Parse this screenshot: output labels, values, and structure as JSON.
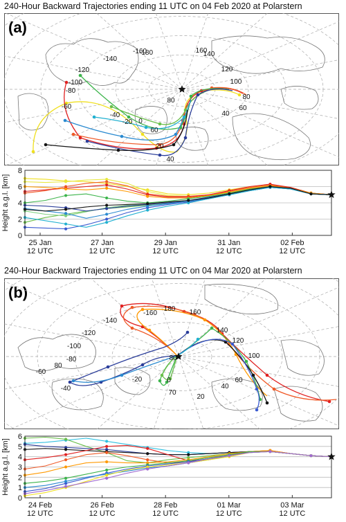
{
  "chart_data": [
    {
      "panel": "(a)",
      "type": "map",
      "title": "240-Hour Backward Trajectories ending 11 UTC on 04 Feb 2020 at Polarstern",
      "longitude_labels": [
        "-180",
        "-160",
        "-140",
        "-120",
        "-100",
        "-80",
        "-60",
        "-40",
        "-20",
        "0",
        "20",
        "40",
        "60",
        "80",
        "100",
        "120",
        "140",
        "160"
      ],
      "latitude_labels": [
        "80",
        "60",
        "40"
      ]
    },
    {
      "panel": "(a)",
      "type": "line",
      "xlabel": "",
      "ylabel": "Height a.g.l. [km]",
      "ylim": [
        0,
        8
      ],
      "yticks": [
        "0",
        "2",
        "4",
        "6",
        "8"
      ],
      "x_date_ticks": [
        {
          "date": "25 Jan",
          "time": "12 UTC"
        },
        {
          "date": "27 Jan",
          "time": "12 UTC"
        },
        {
          "date": "29 Jan",
          "time": "12 UTC"
        },
        {
          "date": "31 Jan",
          "time": "12 UTC"
        },
        {
          "date": "02 Feb",
          "time": "12 UTC"
        }
      ],
      "end_height_km": 5,
      "series": [
        {
          "color": "#f0e020",
          "values": [
            7.0,
            6.9,
            6.7,
            6.6,
            6.4,
            6.0,
            5.6,
            5.1,
            5.0,
            5.2,
            5.6,
            6.0,
            6.2,
            5.9,
            5.2,
            5.0
          ]
        },
        {
          "color": "#e8e840",
          "values": [
            6.6,
            6.5,
            6.6,
            6.8,
            6.9,
            6.4,
            5.4,
            4.9,
            4.8,
            4.9,
            5.3,
            5.8,
            6.1,
            5.8,
            5.1,
            5.0
          ]
        },
        {
          "color": "#f05a28",
          "values": [
            5.2,
            5.5,
            6.0,
            6.4,
            6.6,
            6.1,
            5.1,
            4.8,
            4.8,
            5.0,
            5.4,
            5.9,
            6.2,
            5.8,
            5.2,
            5.0
          ]
        },
        {
          "color": "#e02020",
          "values": [
            5.4,
            5.6,
            5.8,
            6.0,
            6.2,
            5.7,
            5.0,
            4.7,
            4.7,
            5.0,
            5.5,
            6.0,
            6.3,
            5.9,
            5.2,
            5.0
          ]
        },
        {
          "color": "#ff9900",
          "values": [
            6.0,
            5.9,
            5.7,
            5.6,
            5.8,
            5.4,
            4.8,
            4.6,
            4.6,
            4.9,
            5.3,
            5.8,
            6.1,
            5.8,
            5.2,
            5.0
          ]
        },
        {
          "color": "#3cb44b",
          "values": [
            4.0,
            4.3,
            4.9,
            5.1,
            4.6,
            4.2,
            4.0,
            4.2,
            4.5,
            4.8,
            5.2,
            5.7,
            6.0,
            5.8,
            5.1,
            5.0
          ]
        },
        {
          "color": "#6abf4b",
          "values": [
            1.6,
            2.2,
            2.6,
            3.0,
            3.3,
            3.5,
            3.7,
            4.0,
            4.3,
            4.6,
            5.0,
            5.5,
            5.9,
            5.7,
            5.1,
            5.0
          ]
        },
        {
          "color": "#80d080",
          "values": [
            3.0,
            2.6,
            2.4,
            2.9,
            3.4,
            3.7,
            3.8,
            3.9,
            4.2,
            4.6,
            5.1,
            5.6,
            6.0,
            5.7,
            5.1,
            5.0
          ]
        },
        {
          "color": "#2a3d9a",
          "values": [
            3.7,
            3.6,
            3.4,
            3.0,
            3.3,
            3.6,
            3.8,
            4.0,
            4.3,
            4.7,
            5.1,
            5.6,
            6.0,
            5.8,
            5.1,
            5.0
          ]
        },
        {
          "color": "#3a5ad0",
          "values": [
            1.0,
            0.9,
            0.8,
            1.3,
            2.0,
            2.8,
            3.4,
            3.8,
            4.1,
            4.5,
            5.0,
            5.5,
            5.9,
            5.7,
            5.1,
            5.0
          ]
        },
        {
          "color": "#2a8ad0",
          "values": [
            3.3,
            3.0,
            2.7,
            2.1,
            2.6,
            3.2,
            3.6,
            3.9,
            4.2,
            4.6,
            5.0,
            5.5,
            5.9,
            5.7,
            5.1,
            5.0
          ]
        },
        {
          "color": "#20b0d0",
          "values": [
            2.2,
            1.8,
            1.4,
            1.0,
            1.6,
            2.4,
            3.1,
            3.6,
            4.0,
            4.5,
            5.0,
            5.5,
            5.9,
            5.7,
            5.1,
            5.0
          ]
        },
        {
          "color": "#141414",
          "values": [
            3.2,
            3.0,
            3.2,
            3.5,
            3.7,
            3.8,
            3.9,
            4.1,
            4.3,
            4.6,
            5.1,
            5.6,
            6.0,
            5.8,
            5.1,
            5.0
          ]
        }
      ]
    },
    {
      "panel": "(b)",
      "type": "map",
      "title": "240-Hour Backward Trajectories ending 11 UTC on 04 Mar 2020 at Polarstern",
      "longitude_labels": [
        "180",
        "-160",
        "160",
        "-140",
        "140",
        "-120",
        "120",
        "-100",
        "100",
        "-80",
        "80",
        "-60",
        "60",
        "-40",
        "40",
        "-20",
        "20",
        "0"
      ],
      "latitude_labels": [
        "80",
        "70"
      ]
    },
    {
      "panel": "(b)",
      "type": "line",
      "xlabel": "",
      "ylabel": "Height a.g.l. [km]",
      "ylim": [
        0,
        6
      ],
      "yticks": [
        "0",
        "1",
        "2",
        "3",
        "4",
        "5",
        "6"
      ],
      "x_date_ticks": [
        {
          "date": "24 Feb",
          "time": "12 UTC"
        },
        {
          "date": "26 Feb",
          "time": "12 UTC"
        },
        {
          "date": "28 Feb",
          "time": "12 UTC"
        },
        {
          "date": "01 Mar",
          "time": "12 UTC"
        },
        {
          "date": "03 Mar",
          "time": "12 UTC"
        }
      ],
      "end_height_km": 4,
      "series": [
        {
          "color": "#30c0e0",
          "values": [
            5.3,
            5.4,
            5.6,
            5.8,
            5.5,
            5.2,
            4.9,
            4.6,
            4.4,
            4.3,
            4.4,
            4.5,
            4.5,
            4.3,
            4.1,
            4.0
          ]
        },
        {
          "color": "#6abf4b",
          "values": [
            5.8,
            5.9,
            5.7,
            5.0,
            4.4,
            3.6,
            3.4,
            3.7,
            3.9,
            4.1,
            4.3,
            4.5,
            4.5,
            4.3,
            4.1,
            4.0
          ]
        },
        {
          "color": "#2a3d9a",
          "values": [
            5.2,
            5.0,
            4.9,
            4.8,
            4.7,
            4.5,
            4.3,
            4.2,
            4.2,
            4.3,
            4.4,
            4.5,
            4.5,
            4.3,
            4.1,
            4.0
          ]
        },
        {
          "color": "#141414",
          "values": [
            4.7,
            4.8,
            4.7,
            4.6,
            4.5,
            4.4,
            4.3,
            4.2,
            4.2,
            4.3,
            4.4,
            4.5,
            4.5,
            4.3,
            4.1,
            4.0
          ]
        },
        {
          "color": "#e02020",
          "values": [
            3.7,
            3.9,
            4.2,
            4.6,
            5.0,
            5.1,
            4.8,
            4.2,
            3.6,
            3.7,
            4.1,
            4.5,
            4.6,
            4.3,
            4.1,
            4.0
          ]
        },
        {
          "color": "#f05a28",
          "values": [
            2.8,
            3.1,
            3.7,
            4.2,
            4.4,
            4.1,
            3.7,
            3.4,
            3.5,
            3.8,
            4.2,
            4.5,
            4.6,
            4.3,
            4.1,
            4.0
          ]
        },
        {
          "color": "#ff9900",
          "values": [
            2.2,
            2.5,
            3.0,
            3.4,
            3.5,
            3.4,
            3.4,
            3.5,
            3.7,
            4.0,
            4.3,
            4.5,
            4.6,
            4.3,
            4.1,
            4.0
          ]
        },
        {
          "color": "#3cb44b",
          "values": [
            1.4,
            1.6,
            1.9,
            2.3,
            2.7,
            3.0,
            3.2,
            3.4,
            3.6,
            3.9,
            4.2,
            4.5,
            4.5,
            4.3,
            4.1,
            4.0
          ]
        },
        {
          "color": "#3a5ad0",
          "values": [
            0.6,
            0.9,
            1.4,
            1.9,
            2.4,
            2.8,
            3.1,
            3.3,
            3.5,
            3.8,
            4.1,
            4.4,
            4.5,
            4.3,
            4.1,
            4.0
          ]
        },
        {
          "color": "#2a8ad0",
          "values": [
            1.0,
            1.2,
            1.6,
            2.0,
            2.3,
            2.6,
            2.9,
            3.1,
            3.4,
            3.7,
            4.1,
            4.4,
            4.5,
            4.3,
            4.1,
            4.0
          ]
        },
        {
          "color": "#f0e020",
          "values": [
            0.2,
            0.5,
            1.0,
            1.6,
            2.2,
            2.7,
            3.0,
            3.2,
            3.4,
            3.7,
            4.0,
            4.4,
            4.5,
            4.3,
            4.1,
            4.0
          ]
        },
        {
          "color": "#a06ad0",
          "values": [
            0.4,
            0.7,
            1.1,
            1.5,
            1.9,
            2.4,
            2.8,
            3.1,
            3.4,
            3.8,
            4.1,
            4.4,
            4.5,
            4.3,
            4.1,
            4.0
          ]
        }
      ]
    }
  ]
}
